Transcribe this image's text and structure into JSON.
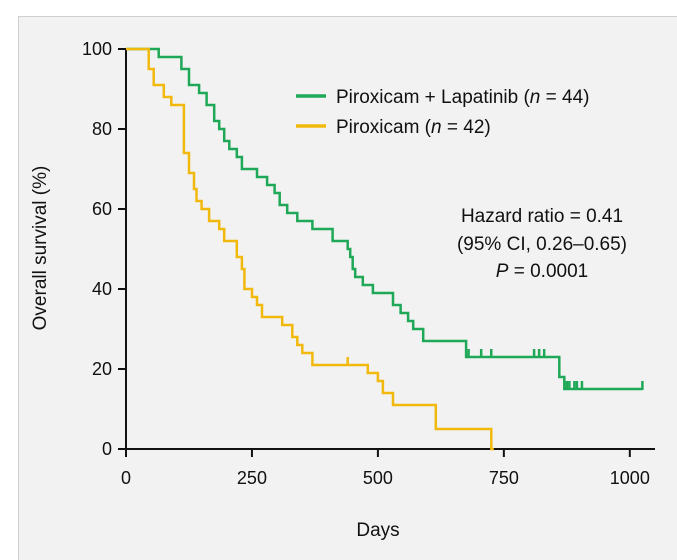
{
  "chart_data": {
    "type": "line",
    "step": true,
    "xlabel": "Days",
    "ylabel": "Overall survival (%)",
    "xlim": [
      0,
      1050
    ],
    "ylim": [
      0,
      100
    ],
    "xticks": [
      0,
      250,
      500,
      750,
      1000
    ],
    "yticks": [
      0,
      20,
      40,
      60,
      80,
      100
    ],
    "legend_position": "top-right",
    "annotation": {
      "line1": "Hazard ratio = 0.41",
      "line2": "(95% CI, 0.26–0.65)",
      "line3_prefix": "P",
      "line3_value": " = 0.0001"
    },
    "series": [
      {
        "name_prefix": "Piroxicam + Lapatinib (",
        "name_n": "n",
        "name_suffix": " = 44)",
        "color": "#1fa857",
        "points": [
          [
            0,
            100
          ],
          [
            65,
            100
          ],
          [
            65,
            98
          ],
          [
            110,
            98
          ],
          [
            110,
            95
          ],
          [
            125,
            95
          ],
          [
            125,
            91
          ],
          [
            145,
            91
          ],
          [
            145,
            89
          ],
          [
            160,
            89
          ],
          [
            160,
            86
          ],
          [
            175,
            86
          ],
          [
            175,
            82
          ],
          [
            185,
            82
          ],
          [
            185,
            80
          ],
          [
            195,
            80
          ],
          [
            195,
            77
          ],
          [
            205,
            77
          ],
          [
            205,
            75
          ],
          [
            220,
            75
          ],
          [
            220,
            73
          ],
          [
            230,
            73
          ],
          [
            230,
            70
          ],
          [
            260,
            70
          ],
          [
            260,
            68
          ],
          [
            280,
            68
          ],
          [
            280,
            66
          ],
          [
            295,
            66
          ],
          [
            295,
            64
          ],
          [
            305,
            64
          ],
          [
            305,
            61
          ],
          [
            320,
            61
          ],
          [
            320,
            59
          ],
          [
            340,
            59
          ],
          [
            340,
            57
          ],
          [
            370,
            57
          ],
          [
            370,
            55
          ],
          [
            410,
            55
          ],
          [
            410,
            52
          ],
          [
            440,
            52
          ],
          [
            440,
            50
          ],
          [
            445,
            50
          ],
          [
            445,
            48
          ],
          [
            450,
            48
          ],
          [
            450,
            45
          ],
          [
            455,
            45
          ],
          [
            455,
            43
          ],
          [
            470,
            43
          ],
          [
            470,
            41
          ],
          [
            490,
            41
          ],
          [
            490,
            39
          ],
          [
            530,
            39
          ],
          [
            530,
            36
          ],
          [
            545,
            36
          ],
          [
            545,
            34
          ],
          [
            560,
            34
          ],
          [
            560,
            32
          ],
          [
            570,
            32
          ],
          [
            570,
            30
          ],
          [
            590,
            30
          ],
          [
            590,
            27
          ],
          [
            675,
            27
          ],
          [
            675,
            23
          ],
          [
            860,
            23
          ],
          [
            860,
            18
          ],
          [
            870,
            18
          ],
          [
            870,
            15
          ],
          [
            1025,
            15
          ]
        ],
        "censor": [
          680,
          705,
          725,
          810,
          820,
          830,
          875,
          880,
          890,
          895,
          905,
          1025
        ]
      },
      {
        "name_prefix": "Piroxicam (",
        "name_n": "n",
        "name_suffix": " = 42)",
        "color": "#f2b90d",
        "points": [
          [
            0,
            100
          ],
          [
            45,
            100
          ],
          [
            45,
            95
          ],
          [
            55,
            95
          ],
          [
            55,
            91
          ],
          [
            75,
            91
          ],
          [
            75,
            88
          ],
          [
            90,
            88
          ],
          [
            90,
            86
          ],
          [
            115,
            86
          ],
          [
            115,
            74
          ],
          [
            125,
            74
          ],
          [
            125,
            69
          ],
          [
            135,
            69
          ],
          [
            135,
            65
          ],
          [
            140,
            65
          ],
          [
            140,
            62
          ],
          [
            150,
            62
          ],
          [
            150,
            60
          ],
          [
            165,
            60
          ],
          [
            165,
            57
          ],
          [
            185,
            57
          ],
          [
            185,
            55
          ],
          [
            195,
            55
          ],
          [
            195,
            52
          ],
          [
            220,
            52
          ],
          [
            220,
            48
          ],
          [
            230,
            48
          ],
          [
            230,
            45
          ],
          [
            235,
            45
          ],
          [
            235,
            40
          ],
          [
            250,
            40
          ],
          [
            250,
            38
          ],
          [
            260,
            38
          ],
          [
            260,
            36
          ],
          [
            270,
            36
          ],
          [
            270,
            33
          ],
          [
            310,
            33
          ],
          [
            310,
            31
          ],
          [
            330,
            31
          ],
          [
            330,
            28
          ],
          [
            340,
            28
          ],
          [
            340,
            26
          ],
          [
            350,
            26
          ],
          [
            350,
            24
          ],
          [
            370,
            24
          ],
          [
            370,
            21
          ],
          [
            480,
            21
          ],
          [
            480,
            19
          ],
          [
            500,
            19
          ],
          [
            500,
            17
          ],
          [
            510,
            17
          ],
          [
            510,
            14
          ],
          [
            530,
            14
          ],
          [
            530,
            11
          ],
          [
            615,
            11
          ],
          [
            615,
            5
          ],
          [
            725,
            5
          ],
          [
            725,
            0
          ],
          [
            730,
            0
          ]
        ],
        "censor": [
          440
        ]
      }
    ]
  }
}
